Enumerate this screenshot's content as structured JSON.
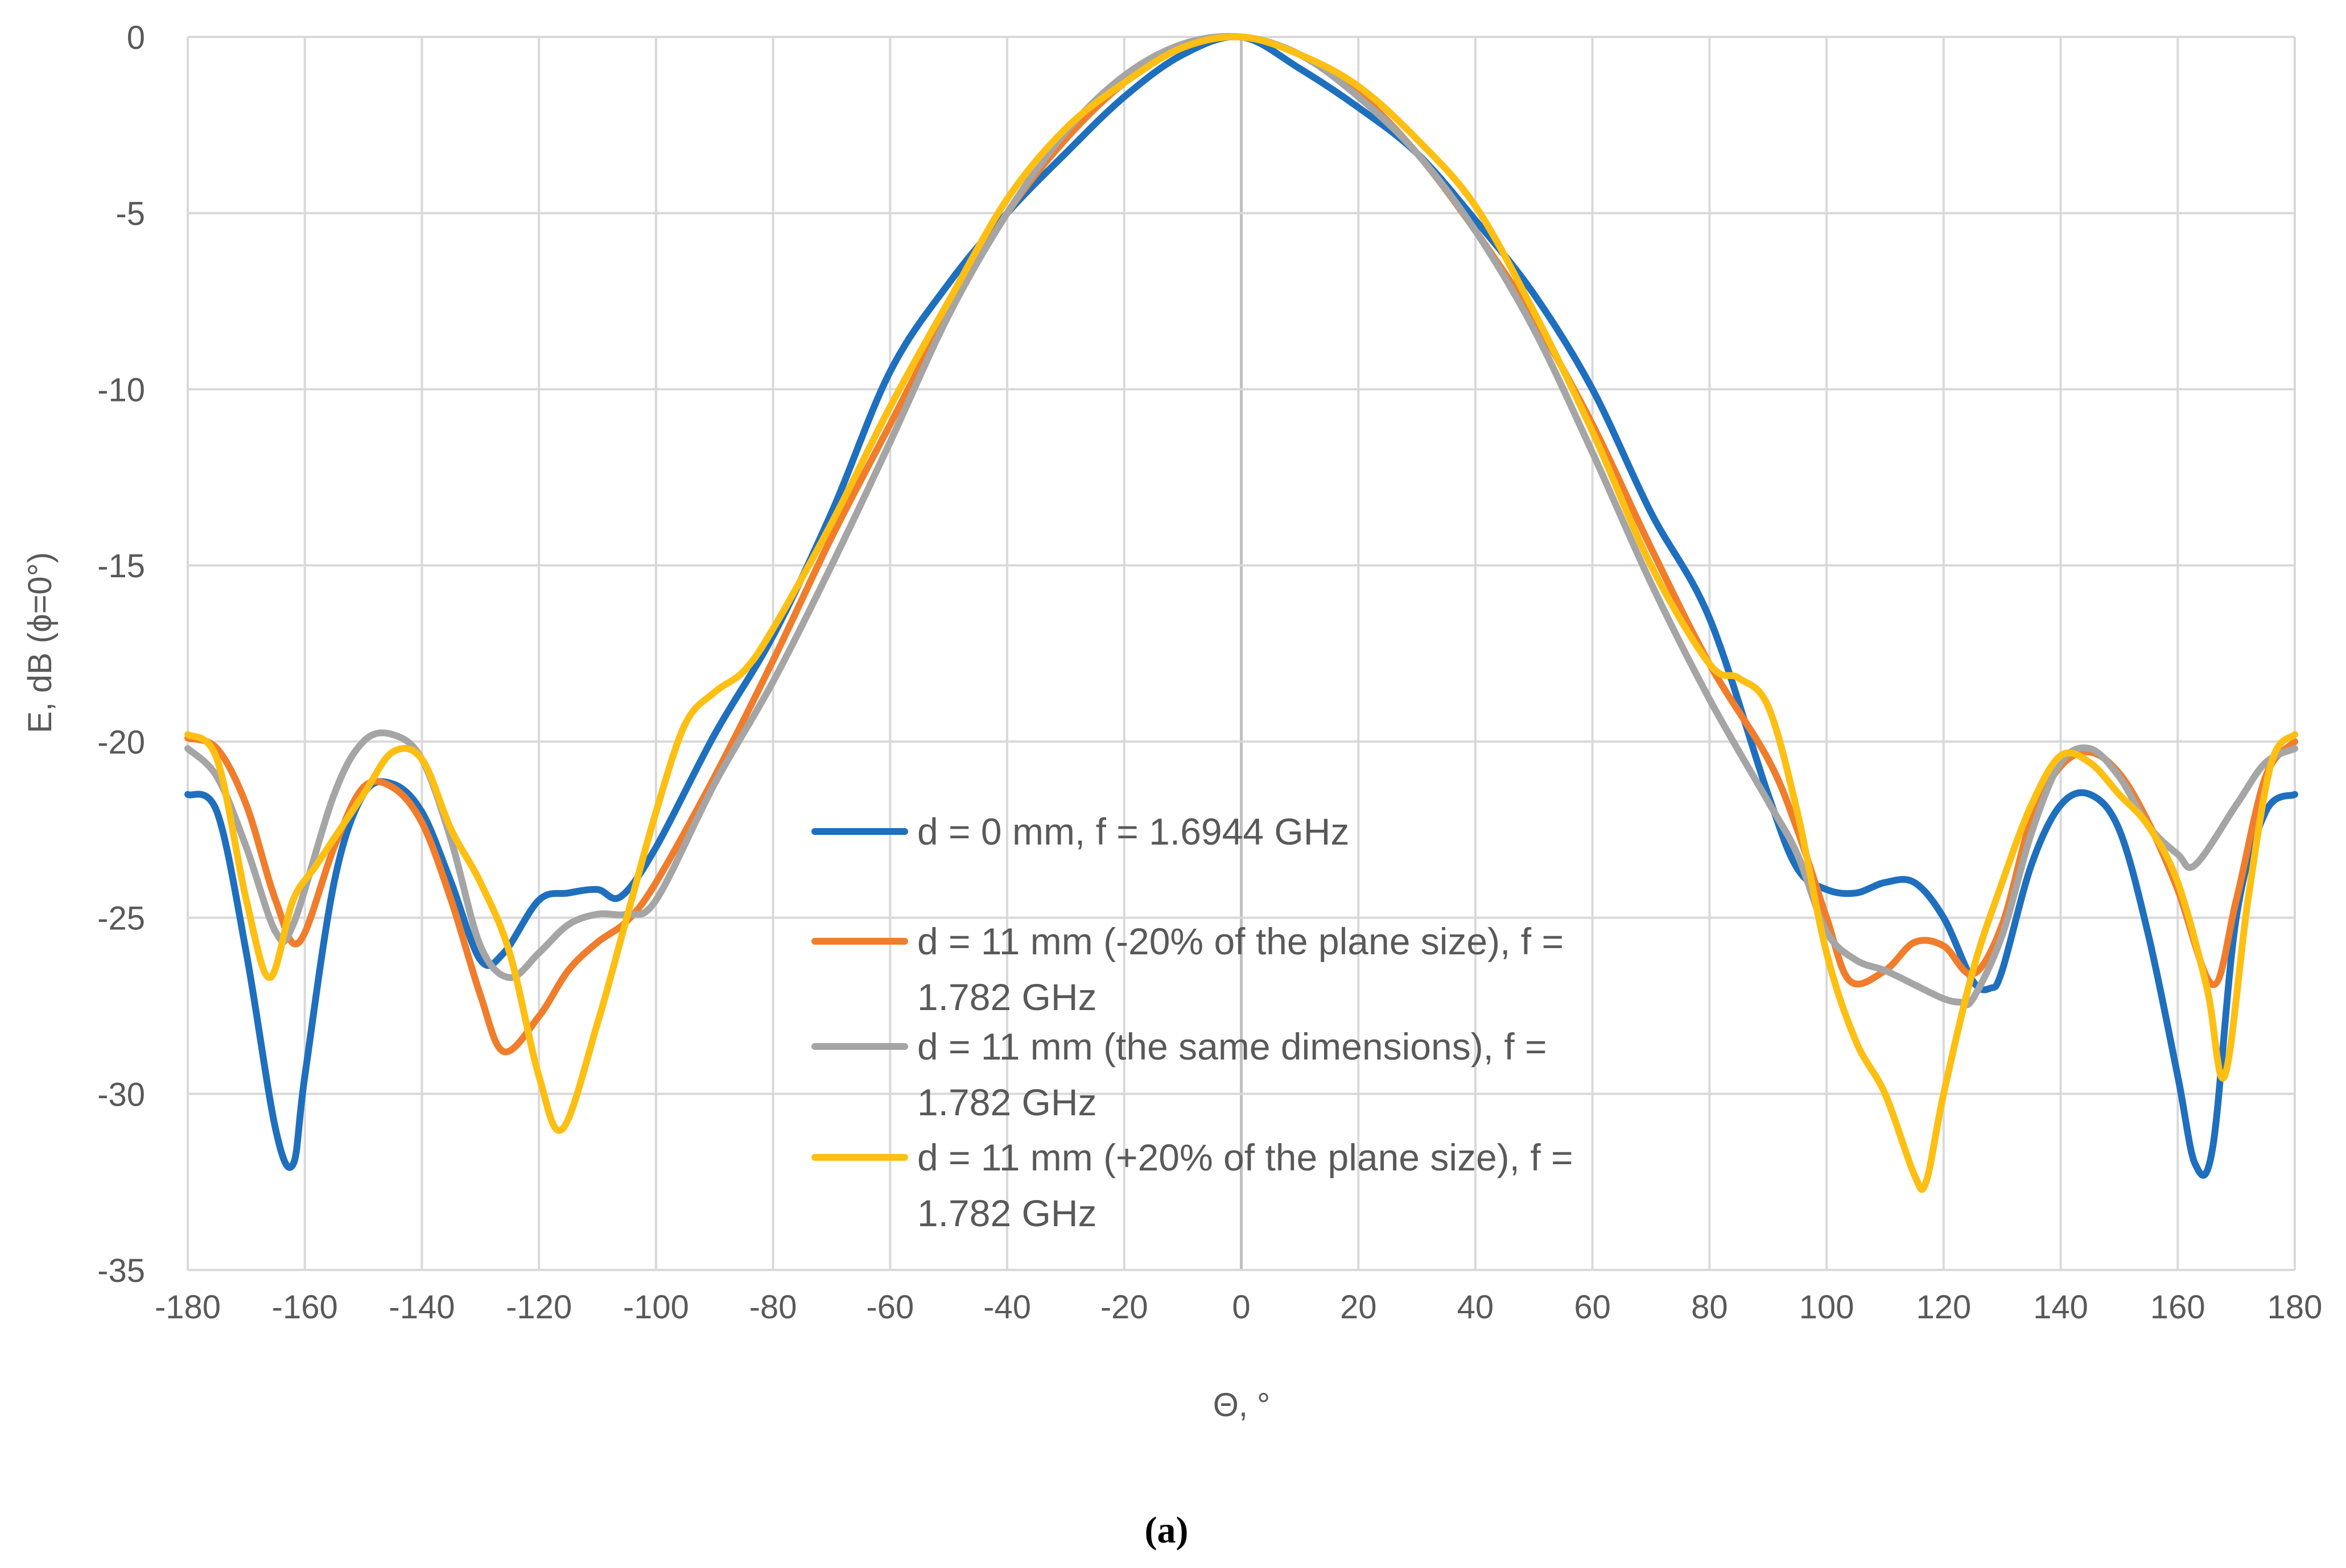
{
  "chart_data": {
    "type": "line",
    "title": "",
    "xlabel": "Θ, °",
    "ylabel": "E, dB (ϕ=0°)",
    "xlim": [
      -180,
      180
    ],
    "ylim": [
      -35,
      0
    ],
    "xticks": [
      "-180",
      "-160",
      "-140",
      "-120",
      "-100",
      "-80",
      "-60",
      "-40",
      "-20",
      "0",
      "20",
      "40",
      "60",
      "80",
      "100",
      "120",
      "140",
      "160",
      "180"
    ],
    "yticks": [
      "0",
      "-5",
      "-10",
      "-15",
      "-20",
      "-25",
      "-30",
      "-35"
    ],
    "grid": true,
    "legend_position": "center-right",
    "caption": "(a)",
    "series": [
      {
        "name": "d = 0 mm, f = 1.6944 GHz",
        "legend_lines": [
          "d = 0 mm, f = 1.6944 GHz"
        ],
        "color": "#1F6FBF",
        "x": [
          -180,
          -175,
          -170,
          -165,
          -162,
          -160,
          -155,
          -150,
          -145,
          -140,
          -135,
          -130,
          -126,
          -120,
          -115,
          -110,
          -106,
          -100,
          -90,
          -80,
          -70,
          -60,
          -50,
          -40,
          -30,
          -20,
          -10,
          0,
          10,
          20,
          30,
          40,
          50,
          60,
          70,
          80,
          90,
          95,
          100,
          105,
          110,
          115,
          120,
          125,
          128,
          130,
          135,
          140,
          145,
          150,
          155,
          160,
          163,
          166,
          170,
          175,
          180
        ],
        "y": [
          -21.5,
          -22.0,
          -26.0,
          -31.0,
          -32.0,
          -29.5,
          -24.0,
          -21.5,
          -21.2,
          -22.0,
          -24.0,
          -26.2,
          -26.0,
          -24.5,
          -24.3,
          -24.2,
          -24.4,
          -23.0,
          -19.8,
          -17.0,
          -13.5,
          -9.5,
          -7.0,
          -5.0,
          -3.3,
          -1.7,
          -0.5,
          0,
          -0.9,
          -2.0,
          -3.3,
          -5.2,
          -7.3,
          -10.0,
          -13.5,
          -16.5,
          -21.5,
          -23.6,
          -24.2,
          -24.3,
          -24.0,
          -24.0,
          -25.0,
          -26.8,
          -27.0,
          -26.5,
          -23.5,
          -21.8,
          -21.5,
          -22.5,
          -25.5,
          -29.5,
          -32.0,
          -31.5,
          -25.0,
          -22.0,
          -21.5
        ]
      },
      {
        "name": "d = 11 mm (-20% of the plane size), f = 1.782 GHz",
        "legend_lines": [
          "d = 11 mm (-20% of the plane size), f =",
          "1.782 GHz"
        ],
        "color": "#F07D2C",
        "x": [
          -180,
          -175,
          -170,
          -165,
          -161,
          -155,
          -150,
          -145,
          -140,
          -135,
          -130,
          -126,
          -120,
          -115,
          -110,
          -105,
          -100,
          -90,
          -80,
          -70,
          -60,
          -50,
          -40,
          -30,
          -20,
          -10,
          0,
          10,
          20,
          30,
          40,
          50,
          60,
          70,
          80,
          90,
          95,
          100,
          104,
          110,
          115,
          120,
          125,
          130,
          135,
          140,
          145,
          150,
          155,
          160,
          166,
          170,
          175,
          180
        ],
        "y": [
          -19.9,
          -20.2,
          -21.8,
          -24.5,
          -25.7,
          -23.0,
          -21.3,
          -21.3,
          -22.3,
          -24.5,
          -27.2,
          -28.8,
          -27.8,
          -26.5,
          -25.7,
          -25.1,
          -24.0,
          -21.0,
          -17.7,
          -14.2,
          -11.0,
          -7.8,
          -5.0,
          -2.9,
          -1.3,
          -0.3,
          0,
          -0.5,
          -1.6,
          -3.3,
          -5.5,
          -8.0,
          -11.0,
          -14.5,
          -17.8,
          -20.5,
          -22.5,
          -25.0,
          -26.8,
          -26.5,
          -25.7,
          -25.8,
          -26.6,
          -25.2,
          -22.2,
          -20.7,
          -20.3,
          -20.9,
          -22.3,
          -24.2,
          -26.9,
          -24.5,
          -21.0,
          -20.0
        ]
      },
      {
        "name": "d = 11 mm (the same dimensions), f = 1.782 GHz",
        "legend_lines": [
          "d = 11 mm (the same dimensions), f =",
          "1.782 GHz"
        ],
        "color": "#A5A5A5",
        "x": [
          -180,
          -175,
          -170,
          -165,
          -162,
          -155,
          -150,
          -145,
          -140,
          -135,
          -130,
          -125,
          -120,
          -115,
          -110,
          -105,
          -100,
          -90,
          -80,
          -70,
          -60,
          -50,
          -40,
          -30,
          -20,
          -10,
          0,
          10,
          20,
          30,
          40,
          50,
          60,
          70,
          80,
          90,
          95,
          100,
          105,
          110,
          115,
          120,
          123,
          125,
          130,
          135,
          140,
          145,
          150,
          155,
          160,
          163,
          170,
          175,
          180
        ],
        "y": [
          -20.2,
          -21.0,
          -23.0,
          -25.4,
          -25.2,
          -21.5,
          -20.0,
          -19.8,
          -20.5,
          -22.8,
          -25.8,
          -26.7,
          -26.0,
          -25.2,
          -24.9,
          -24.9,
          -24.5,
          -21.2,
          -18.3,
          -15.0,
          -11.5,
          -7.9,
          -5.0,
          -2.7,
          -1.1,
          -0.2,
          0,
          -0.5,
          -1.7,
          -3.3,
          -5.5,
          -8.3,
          -11.8,
          -15.5,
          -18.8,
          -21.7,
          -23.2,
          -25.4,
          -26.2,
          -26.5,
          -26.9,
          -27.3,
          -27.4,
          -27.3,
          -25.5,
          -22.6,
          -20.6,
          -20.2,
          -21.0,
          -22.4,
          -23.2,
          -23.5,
          -21.8,
          -20.6,
          -20.2
        ]
      },
      {
        "name": "d = 11 mm (+20% of the plane size), f = 1.782 GHz",
        "legend_lines": [
          "d = 11 mm (+20% of the plane size),  f =",
          "1.782 GHz"
        ],
        "color": "#FDBF12",
        "x": [
          -180,
          -175,
          -170,
          -166,
          -162,
          -158,
          -150,
          -145,
          -140,
          -135,
          -130,
          -125,
          -120,
          -116,
          -110,
          -105,
          -100,
          -95,
          -90,
          -85,
          -80,
          -70,
          -60,
          -50,
          -40,
          -30,
          -20,
          -10,
          0,
          10,
          20,
          30,
          40,
          50,
          60,
          70,
          80,
          85,
          90,
          95,
          100,
          105,
          110,
          115,
          117,
          120,
          125,
          130,
          135,
          140,
          145,
          150,
          155,
          160,
          165,
          168,
          172,
          176,
          180
        ],
        "y": [
          -19.8,
          -20.5,
          -24.5,
          -26.7,
          -24.5,
          -23.5,
          -21.5,
          -20.3,
          -20.5,
          -22.5,
          -24.0,
          -26.0,
          -29.5,
          -31.0,
          -28.0,
          -25.0,
          -22.0,
          -19.5,
          -18.6,
          -18.0,
          -16.8,
          -13.8,
          -10.5,
          -7.5,
          -4.6,
          -2.6,
          -1.3,
          -0.3,
          0,
          -0.5,
          -1.4,
          -2.9,
          -4.8,
          -7.8,
          -11.2,
          -15.0,
          -17.8,
          -18.2,
          -19.0,
          -22.0,
          -26.0,
          -28.5,
          -30.0,
          -32.3,
          -32.5,
          -30.0,
          -26.5,
          -24.0,
          -21.8,
          -20.4,
          -20.6,
          -21.5,
          -22.4,
          -24.0,
          -27.0,
          -29.5,
          -24.5,
          -20.6,
          -19.8
        ]
      }
    ]
  }
}
